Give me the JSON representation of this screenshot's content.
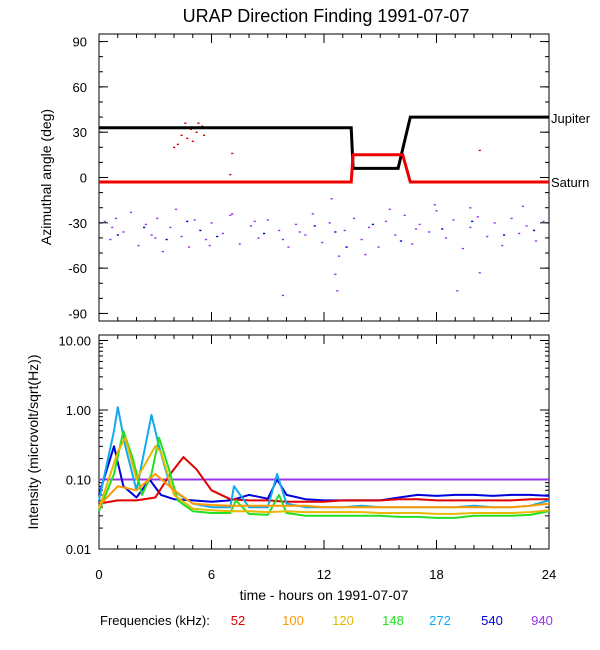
{
  "title": "URAP Direction Finding  1991-07-07",
  "xlabel": "time - hours on 1991-07-07",
  "x_ticks": [
    "0",
    "6",
    "12",
    "18",
    "24"
  ],
  "xlim": [
    0,
    24
  ],
  "legend_label": "Frequencies (kHz):",
  "legend": [
    {
      "label": "52",
      "color": "#e00000"
    },
    {
      "label": "100",
      "color": "#ff9900"
    },
    {
      "label": "120",
      "color": "#e6b800"
    },
    {
      "label": "148",
      "color": "#22e022"
    },
    {
      "label": "272",
      "color": "#11aaee"
    },
    {
      "label": "540",
      "color": "#0000dd"
    },
    {
      "label": "940",
      "color": "#9933ee"
    }
  ],
  "chart_data": [
    {
      "type": "line",
      "ylabel": "Azimuthal angle (deg)",
      "ylim": [
        -95,
        95
      ],
      "y_ticks": [
        "90",
        "60",
        "30",
        "0",
        "-30",
        "-60",
        "-90"
      ],
      "series": [
        {
          "name": "Jupiter",
          "color": "#000000",
          "x": [
            0,
            13.45,
            13.55,
            15.95,
            16.6,
            24
          ],
          "y": [
            33,
            33,
            6,
            6,
            40,
            40
          ]
        },
        {
          "name": "Saturn",
          "color": "#ee0000",
          "x": [
            0,
            13.45,
            13.55,
            16.2,
            16.6,
            24
          ],
          "y": [
            -3,
            -3,
            15,
            15,
            -3,
            -3
          ]
        }
      ],
      "scatter": [
        {
          "name": "52",
          "color": "#dd0000",
          "points": [
            [
              4.6,
              36
            ],
            [
              4.9,
              32
            ],
            [
              5.2,
              30
            ],
            [
              5.5,
              34
            ],
            [
              4.4,
              28
            ],
            [
              5.0,
              24
            ],
            [
              5.3,
              36
            ],
            [
              4.7,
              26
            ],
            [
              5.6,
              28
            ],
            [
              4.2,
              22
            ],
            [
              5.1,
              33
            ],
            [
              4.0,
              20
            ]
          ]
        },
        {
          "name": "540",
          "color": "#0000cc",
          "points": [
            [
              1.0,
              -38
            ],
            [
              2.4,
              -33
            ],
            [
              3.6,
              -41
            ],
            [
              4.7,
              -29
            ],
            [
              5.4,
              -35
            ],
            [
              6.3,
              -39
            ],
            [
              8.8,
              -37
            ],
            [
              11.5,
              -32
            ],
            [
              12.6,
              -36
            ],
            [
              13.2,
              -46
            ],
            [
              14.6,
              -31
            ],
            [
              16.1,
              -42
            ],
            [
              18.3,
              -34
            ],
            [
              19.9,
              -29
            ],
            [
              21.6,
              -38
            ],
            [
              23.2,
              -35
            ]
          ]
        },
        {
          "name": "940",
          "color": "#9933ee",
          "points": [
            [
              0.3,
              -29
            ],
            [
              0.6,
              -41
            ],
            [
              0.9,
              -27
            ],
            [
              1.3,
              -36
            ],
            [
              1.7,
              -23
            ],
            [
              2.1,
              -45
            ],
            [
              2.5,
              -31
            ],
            [
              2.8,
              -38
            ],
            [
              3.1,
              -27
            ],
            [
              3.4,
              -49
            ],
            [
              3.8,
              -33
            ],
            [
              4.1,
              -21
            ],
            [
              4.4,
              -39
            ],
            [
              4.8,
              -46
            ],
            [
              5.1,
              -28
            ],
            [
              5.7,
              -41
            ],
            [
              6.0,
              -30
            ],
            [
              6.6,
              -37
            ],
            [
              7.0,
              -25
            ],
            [
              7.5,
              -44
            ],
            [
              8.1,
              -32
            ],
            [
              8.5,
              -40
            ],
            [
              9.0,
              -28
            ],
            [
              9.6,
              -35
            ],
            [
              10.1,
              -46
            ],
            [
              10.5,
              -31
            ],
            [
              11.0,
              -38
            ],
            [
              11.4,
              -24
            ],
            [
              11.9,
              -43
            ],
            [
              12.3,
              -30
            ],
            [
              12.8,
              -52
            ],
            [
              13.1,
              -35
            ],
            [
              13.6,
              -27
            ],
            [
              14.0,
              -41
            ],
            [
              14.4,
              -33
            ],
            [
              14.9,
              -46
            ],
            [
              15.3,
              -29
            ],
            [
              15.8,
              -38
            ],
            [
              16.3,
              -25
            ],
            [
              16.7,
              -44
            ],
            [
              17.1,
              -31
            ],
            [
              17.6,
              -36
            ],
            [
              18.0,
              -22
            ],
            [
              18.5,
              -40
            ],
            [
              18.9,
              -28
            ],
            [
              19.4,
              -47
            ],
            [
              19.8,
              -33
            ],
            [
              20.2,
              -26
            ],
            [
              20.7,
              -39
            ],
            [
              21.1,
              -30
            ],
            [
              21.5,
              -45
            ],
            [
              22.0,
              -27
            ],
            [
              22.4,
              -37
            ],
            [
              22.8,
              -32
            ],
            [
              23.3,
              -42
            ],
            [
              23.7,
              -29
            ],
            [
              20.3,
              -63
            ],
            [
              9.8,
              -41
            ],
            [
              14.2,
              -51
            ],
            [
              17.9,
              -18
            ],
            [
              15.5,
              -21
            ],
            [
              0.7,
              -33
            ],
            [
              8.3,
              -29
            ],
            [
              19.1,
              -75
            ],
            [
              9.8,
              -78
            ],
            [
              12.6,
              -64
            ],
            [
              12.7,
              -75
            ],
            [
              12.4,
              -14
            ],
            [
              19.8,
              -20
            ],
            [
              7.1,
              -24
            ],
            [
              5.9,
              -45
            ],
            [
              22.6,
              -19
            ],
            [
              10.7,
              -36
            ],
            [
              3.0,
              -40
            ],
            [
              16.9,
              -34
            ]
          ]
        },
        {
          "name": "148",
          "color": "#dd0000",
          "points": [
            [
              7.1,
              16
            ],
            [
              7.0,
              2
            ],
            [
              20.3,
              18
            ]
          ]
        }
      ],
      "annotations": [
        {
          "text": "Jupiter",
          "x": 24,
          "y": 40
        },
        {
          "text": "Saturn",
          "x": 24,
          "y": -3
        }
      ]
    },
    {
      "type": "line",
      "ylabel": "Intensity (microvolt/sqrt(Hz))",
      "yscale": "log",
      "ylim": [
        0.01,
        12
      ],
      "y_ticks": [
        "10.00",
        "1.00",
        "0.10",
        "0.01"
      ],
      "y_tick_values": [
        10,
        1,
        0.1,
        0.01
      ],
      "series": [
        {
          "name": "940",
          "color": "#9933ee",
          "x": [
            0,
            1,
            2,
            3,
            4,
            5,
            6,
            7,
            8,
            9,
            10,
            11,
            12,
            13,
            14,
            15,
            16,
            17,
            18,
            19,
            20,
            21,
            22,
            23,
            24
          ],
          "y": [
            0.1,
            0.1,
            0.1,
            0.1,
            0.1,
            0.1,
            0.1,
            0.1,
            0.1,
            0.1,
            0.1,
            0.1,
            0.1,
            0.1,
            0.1,
            0.1,
            0.1,
            0.1,
            0.1,
            0.1,
            0.1,
            0.1,
            0.1,
            0.1,
            0.1
          ]
        },
        {
          "name": "540",
          "color": "#0000dd",
          "x": [
            0,
            0.8,
            1.3,
            2,
            2.7,
            3.3,
            4,
            5,
            6,
            7,
            8,
            9,
            9.5,
            10,
            11,
            12,
            13,
            14,
            15,
            16,
            17,
            18,
            19,
            20,
            21,
            22,
            23,
            24
          ],
          "y": [
            0.06,
            0.3,
            0.08,
            0.055,
            0.1,
            0.06,
            0.052,
            0.05,
            0.048,
            0.05,
            0.06,
            0.053,
            0.1,
            0.06,
            0.052,
            0.05,
            0.05,
            0.05,
            0.05,
            0.055,
            0.06,
            0.058,
            0.06,
            0.06,
            0.058,
            0.06,
            0.06,
            0.058
          ]
        },
        {
          "name": "52",
          "color": "#e00000",
          "x": [
            0,
            1,
            2,
            3,
            3.8,
            4.5,
            5.2,
            6,
            7,
            8,
            9,
            10,
            11,
            12,
            13,
            14,
            15,
            16,
            17,
            18,
            19,
            20,
            21,
            22,
            23,
            24
          ],
          "y": [
            0.045,
            0.05,
            0.05,
            0.055,
            0.12,
            0.21,
            0.14,
            0.07,
            0.052,
            0.05,
            0.05,
            0.048,
            0.048,
            0.048,
            0.05,
            0.05,
            0.05,
            0.052,
            0.052,
            0.05,
            0.05,
            0.05,
            0.05,
            0.05,
            0.052,
            0.052
          ]
        },
        {
          "name": "272",
          "color": "#11aaee",
          "x": [
            0,
            0.8,
            1.0,
            1.4,
            2,
            2.8,
            3.2,
            3.8,
            4.3,
            5,
            6,
            7,
            7.2,
            8,
            9,
            9.5,
            10,
            11,
            12,
            13,
            14,
            15,
            16,
            17,
            18,
            19,
            20,
            21,
            22,
            23,
            24
          ],
          "y": [
            0.05,
            0.5,
            1.1,
            0.3,
            0.07,
            0.85,
            0.3,
            0.08,
            0.06,
            0.045,
            0.04,
            0.04,
            0.08,
            0.04,
            0.04,
            0.12,
            0.045,
            0.04,
            0.04,
            0.04,
            0.042,
            0.04,
            0.04,
            0.04,
            0.04,
            0.04,
            0.042,
            0.04,
            0.04,
            0.042,
            0.05
          ]
        },
        {
          "name": "148",
          "color": "#22e022",
          "x": [
            0,
            0.8,
            1.3,
            1.8,
            2.3,
            2.8,
            3.2,
            3.7,
            4.2,
            5,
            6,
            7,
            7.3,
            8,
            9,
            9.6,
            10,
            11,
            12,
            13,
            14,
            15,
            16,
            17,
            18,
            19,
            20,
            21,
            22,
            23,
            24
          ],
          "y": [
            0.035,
            0.12,
            0.5,
            0.2,
            0.06,
            0.12,
            0.4,
            0.15,
            0.05,
            0.035,
            0.033,
            0.033,
            0.05,
            0.032,
            0.031,
            0.06,
            0.033,
            0.03,
            0.03,
            0.03,
            0.03,
            0.03,
            0.029,
            0.029,
            0.028,
            0.028,
            0.03,
            0.03,
            0.03,
            0.031,
            0.035
          ]
        },
        {
          "name": "120",
          "color": "#e6b800",
          "x": [
            0,
            1,
            1.4,
            2,
            3,
            3.3,
            4,
            5,
            6,
            7,
            8,
            9,
            10,
            11,
            12,
            13,
            14,
            15,
            16,
            17,
            18,
            19,
            20,
            21,
            22,
            23,
            24
          ],
          "y": [
            0.038,
            0.25,
            0.4,
            0.1,
            0.3,
            0.25,
            0.06,
            0.038,
            0.036,
            0.035,
            0.035,
            0.034,
            0.035,
            0.034,
            0.034,
            0.034,
            0.034,
            0.033,
            0.033,
            0.033,
            0.032,
            0.032,
            0.033,
            0.033,
            0.033,
            0.034,
            0.036
          ]
        },
        {
          "name": "100",
          "color": "#ff9900",
          "x": [
            0,
            1,
            2,
            3,
            4,
            5,
            6,
            7,
            8,
            9,
            10,
            11,
            12,
            13,
            14,
            15,
            16,
            17,
            18,
            19,
            20,
            21,
            22,
            23,
            24
          ],
          "y": [
            0.042,
            0.08,
            0.07,
            0.12,
            0.07,
            0.045,
            0.043,
            0.042,
            0.042,
            0.042,
            0.042,
            0.042,
            0.04,
            0.04,
            0.04,
            0.04,
            0.04,
            0.04,
            0.04,
            0.04,
            0.04,
            0.04,
            0.04,
            0.042,
            0.045
          ]
        }
      ]
    }
  ]
}
